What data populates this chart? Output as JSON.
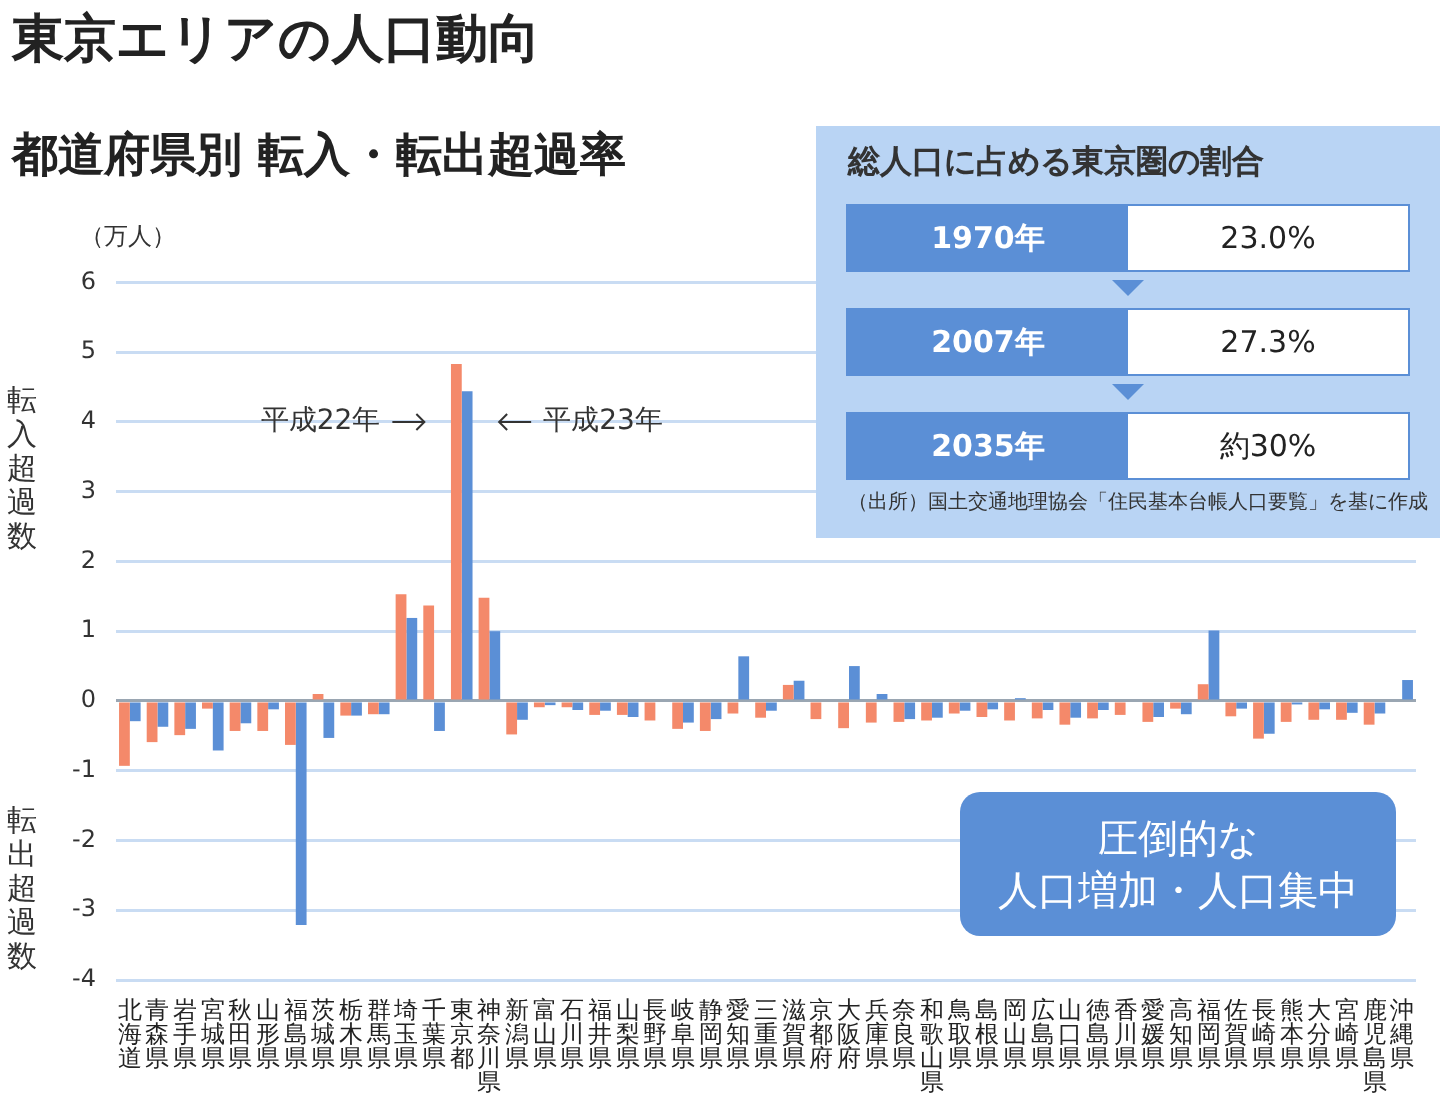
{
  "chart_data": [
    {
      "type": "bar",
      "title": "東京エリアの人口動向",
      "subtitle": "都道府県別 転入・転出超過率",
      "ylabel": "（万人）",
      "categories": [
        "北海道",
        "青森県",
        "岩手県",
        "宮城県",
        "秋田県",
        "山形県",
        "福島県",
        "茨城県",
        "栃木県",
        "群馬県",
        "埼玉県",
        "千葉県",
        "東京都",
        "神奈川県",
        "新潟県",
        "富山県",
        "石川県",
        "福井県",
        "山梨県",
        "長野県",
        "岐阜県",
        "静岡県",
        "愛知県",
        "三重県",
        "滋賀県",
        "京都府",
        "大阪府",
        "兵庫県",
        "奈良県",
        "和歌山県",
        "鳥取県",
        "島根県",
        "岡山県",
        "広島県",
        "山口県",
        "徳島県",
        "香川県",
        "愛媛県",
        "高知県",
        "福岡県",
        "佐賀県",
        "長崎県",
        "熊本県",
        "大分県",
        "宮崎県",
        "鹿児島県",
        "沖縄県"
      ],
      "series": [
        {
          "name": "平成22年",
          "color": "#f4896a",
          "values": [
            -0.93,
            -0.59,
            -0.49,
            -0.11,
            -0.43,
            -0.43,
            -0.63,
            0.1,
            -0.21,
            -0.19,
            1.53,
            1.37,
            4.83,
            1.48,
            -0.48,
            -0.09,
            -0.09,
            -0.2,
            -0.2,
            -0.28,
            -0.4,
            -0.43,
            -0.18,
            -0.24,
            0.23,
            -0.26,
            -0.39,
            -0.31,
            -0.3,
            -0.28,
            -0.18,
            -0.23,
            -0.28,
            -0.25,
            -0.34,
            -0.25,
            -0.2,
            -0.3,
            -0.11,
            0.24,
            -0.22,
            -0.54,
            -0.3,
            -0.27,
            -0.27,
            -0.34,
            0
          ]
        },
        {
          "name": "平成23年",
          "color": "#5b8fd6",
          "values": [
            -0.29,
            -0.37,
            -0.4,
            -0.71,
            -0.32,
            -0.12,
            -3.21,
            -0.53,
            -0.21,
            -0.19,
            1.19,
            -0.43,
            4.44,
            1.0,
            -0.27,
            -0.06,
            -0.13,
            -0.14,
            -0.23,
            0,
            -0.31,
            -0.26,
            0.64,
            -0.14,
            0.29,
            0,
            0.5,
            0.1,
            -0.26,
            -0.24,
            -0.14,
            -0.12,
            0.04,
            -0.13,
            -0.24,
            -0.13,
            0,
            -0.23,
            -0.19,
            1.01,
            -0.11,
            -0.47,
            -0.05,
            -0.12,
            -0.17,
            -0.18,
            0.3
          ]
        }
      ],
      "ylim": [
        -4,
        6
      ],
      "yticks": [
        -4,
        -3,
        -2,
        -1,
        0,
        1,
        2,
        3,
        4,
        5,
        6
      ],
      "grid": "y",
      "annotations": [
        "転入超過数",
        "転出超過数",
        "圧倒的な",
        "人口増加・人口集中"
      ]
    },
    {
      "type": "other",
      "title": "総人口に占める東京圏の割合",
      "categories": [
        "1970年",
        "2007年",
        "2035年"
      ],
      "value_labels": [
        "23.0%",
        "27.3%",
        "約30%"
      ],
      "annotations": [
        "（出所）国土交通地理協会「住民基本台帳人口要覧」を基に作成"
      ]
    }
  ]
}
